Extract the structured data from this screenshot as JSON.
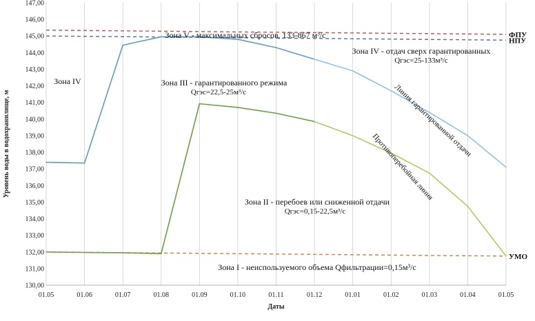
{
  "chart_data": {
    "type": "line",
    "title": "",
    "xlabel": "Даты",
    "ylabel": "Уровень воды в водохранилище, м",
    "categories": [
      "01.05",
      "01.06",
      "01.07",
      "01.08",
      "01.09",
      "01.10",
      "01.11",
      "01.12",
      "01.01",
      "01.02",
      "01.03",
      "01.04",
      "01.05"
    ],
    "ylim": [
      130,
      147
    ],
    "yticks": [
      "130,00",
      "131,00",
      "132,00",
      "133,00",
      "134,00",
      "135,00",
      "136,00",
      "137,00",
      "138,00",
      "139,00",
      "140,00",
      "141,00",
      "142,00",
      "143,00",
      "144,00",
      "145,00",
      "146,00",
      "147,00"
    ],
    "grid": "vertical",
    "series": [
      {
        "name": "Линия гарантированной отдачи",
        "color": "#5b9bd5",
        "color_end": "#8fc2ea",
        "values": [
          137.4,
          137.35,
          144.45,
          144.95,
          144.95,
          144.8,
          144.3,
          143.6,
          142.9,
          141.7,
          140.4,
          139.0,
          137.1
        ]
      },
      {
        "name": "Противоперебойная линия",
        "color": "#6aa23e",
        "color_end": "#a9cf58",
        "values": [
          132.0,
          131.97,
          131.95,
          131.9,
          140.92,
          140.7,
          140.35,
          139.85,
          139.0,
          137.95,
          136.75,
          134.75,
          131.75
        ]
      }
    ],
    "reference_lines": [
      {
        "label": "ФПУ",
        "value": 145.35,
        "value_end": 145.1,
        "color": "#c0504d"
      },
      {
        "label": "НПУ",
        "value": 145.0,
        "value_end": 144.75,
        "color": "#4f6ea8"
      },
      {
        "label": "УМО",
        "value": 132.0,
        "value_end": 131.75,
        "color": "#e07b39"
      }
    ],
    "annotations": {
      "zone5": "Зона V - максимальных сбросов, 133-867 м³/с",
      "zone4_right_1": "Зона IV - отдач сверх гарантированных",
      "zone4_right_2": "Qгэс=25-133м³/с",
      "zone4_left": "Зона IV",
      "zone3_1": "Зона III - гарантированного режима",
      "zone3_2": "Qгэс=22,5-25м³/с",
      "zone2_1": "Зона II - перебоев или сниженной отдачи",
      "zone2_2": "Qгэс=0,15-22,5м³/с",
      "zone1": "Зона I - неиспользуемого объема Qфильтрации=0,15м³/с",
      "line_guaranteed": "Линия гарантированной отдачи",
      "line_antifailure": "Противоперебойная линия"
    }
  }
}
